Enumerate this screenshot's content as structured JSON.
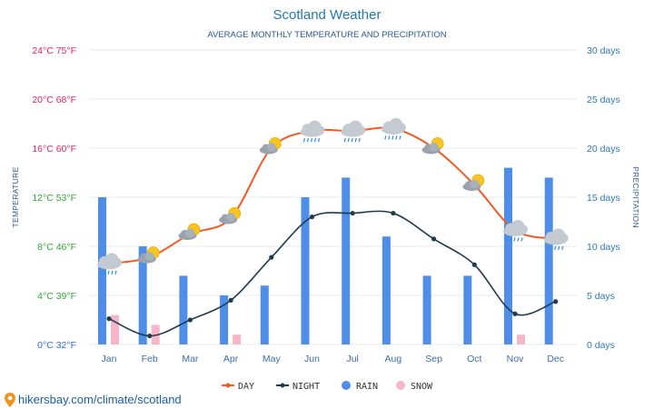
{
  "chart_data": {
    "type": "line+bar",
    "title": "Scotland Weather",
    "subtitle": "AVERAGE MONTHLY TEMPERATURE AND PRECIPITATION",
    "categories": [
      "Jan",
      "Feb",
      "Mar",
      "Apr",
      "May",
      "Jun",
      "Jul",
      "Aug",
      "Sep",
      "Oct",
      "Nov",
      "Dec"
    ],
    "y_left": {
      "label": "TEMPERATURE",
      "range": [
        0,
        24
      ],
      "ticks": [
        {
          "value": 0,
          "label": "0°C 32°F",
          "color": "#2c6fd8"
        },
        {
          "value": 4,
          "label": "4°C 39°F",
          "color": "#2fa832"
        },
        {
          "value": 8,
          "label": "8°C 46°F",
          "color": "#2fa832"
        },
        {
          "value": 12,
          "label": "12°C 53°F",
          "color": "#2fa832"
        },
        {
          "value": 16,
          "label": "16°C 60°F",
          "color": "#e0245e"
        },
        {
          "value": 20,
          "label": "20°C 68°F",
          "color": "#e0245e"
        },
        {
          "value": 24,
          "label": "24°C 75°F",
          "color": "#e0245e"
        }
      ]
    },
    "y_right": {
      "label": "PRECIPITATION",
      "range": [
        0,
        30
      ],
      "ticks": [
        {
          "value": 0,
          "label": "0 days"
        },
        {
          "value": 5,
          "label": "5 days"
        },
        {
          "value": 10,
          "label": "10 days"
        },
        {
          "value": 15,
          "label": "15 days"
        },
        {
          "value": 20,
          "label": "20 days"
        },
        {
          "value": 25,
          "label": "25 days"
        },
        {
          "value": 30,
          "label": "30 days"
        }
      ]
    },
    "series": [
      {
        "name": "DAY",
        "axis": "left",
        "kind": "line",
        "color": "#f05a24",
        "values": [
          6.6,
          7.1,
          9.0,
          10.3,
          16.0,
          17.4,
          17.4,
          17.6,
          16.0,
          13.0,
          9.3,
          8.6
        ]
      },
      {
        "name": "NIGHT",
        "axis": "left",
        "kind": "line",
        "color": "#1f3b4d",
        "values": [
          2.1,
          0.7,
          2.0,
          3.6,
          7.1,
          10.4,
          10.7,
          10.7,
          8.6,
          6.5,
          2.5,
          3.5
        ]
      },
      {
        "name": "RAIN",
        "axis": "right",
        "kind": "bar",
        "color": "#4e8ee8",
        "values": [
          15,
          10,
          7,
          5,
          6,
          15,
          17,
          11,
          7,
          7,
          18,
          17
        ]
      },
      {
        "name": "SNOW",
        "axis": "right",
        "kind": "bar",
        "color": "#f6b6c8",
        "values": [
          3,
          2,
          0,
          1,
          0,
          0,
          0,
          0,
          0,
          0,
          1,
          0
        ]
      }
    ],
    "weather_icons": [
      "cloud-rain",
      "sun-cloud",
      "sun-cloud",
      "sun-cloud",
      "sun-cloud",
      "cloud-rain",
      "cloud-rain",
      "cloud-rain",
      "sun-cloud",
      "sun-cloud",
      "cloud-rain",
      "cloud-rain"
    ],
    "legend": [
      "DAY",
      "NIGHT",
      "RAIN",
      "SNOW"
    ],
    "legend_position": "bottom-center",
    "grid": true
  },
  "source": "hikersbay.com/climate/scotland"
}
